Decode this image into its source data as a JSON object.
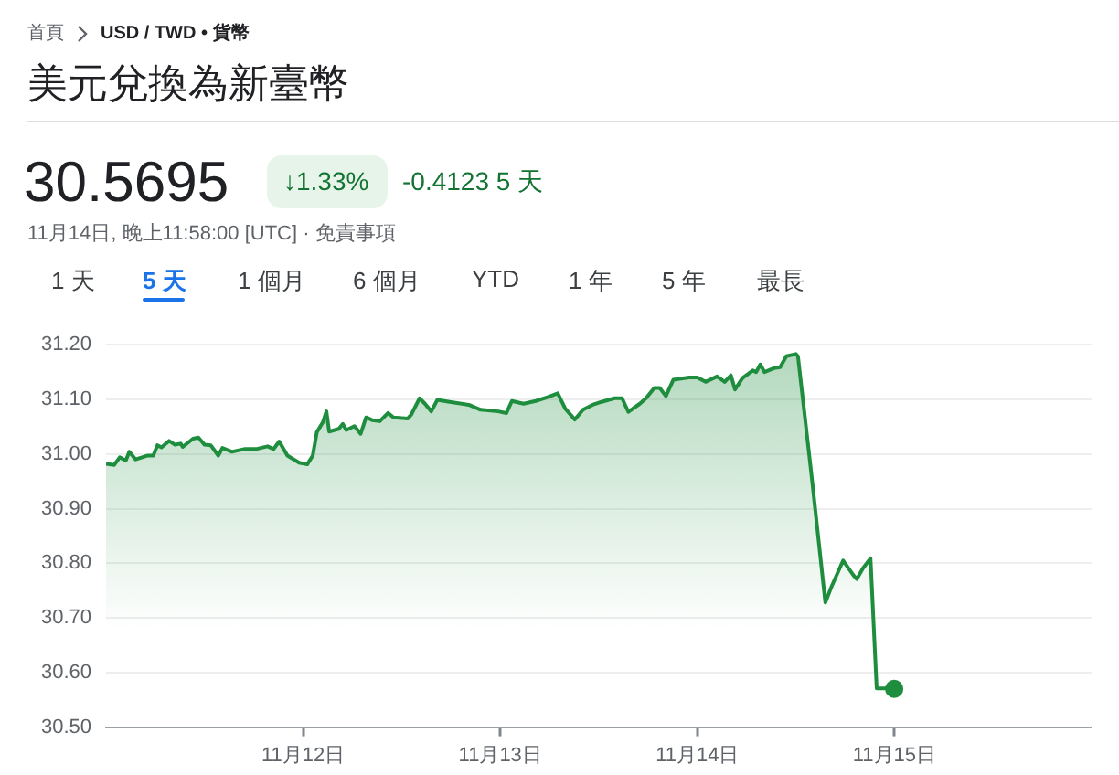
{
  "chart_data": {
    "type": "area",
    "title": "美元兌換為新臺幣",
    "annotations": [
      "首頁",
      "USD / TWD • 貨幣",
      "30.5695",
      "↓1.33%",
      "-0.4123 5 天",
      "11月14日, 晚上11:58:00 [UTC] · 免責事項",
      "1 天",
      "5 天",
      "1 個月",
      "6 個月",
      "YTD",
      "1 年",
      "5 年",
      "最長"
    ],
    "x": [
      "--11-11T00:00",
      "--11-11T01:00",
      "--11-11T01:40",
      "--11-11T02:24",
      "--11-11T02:50",
      "--11-11T03:36",
      "--11-11T05:00",
      "--11-11T05:45",
      "--11-11T06:15",
      "--11-11T06:45",
      "--11-11T07:40",
      "--11-11T08:24",
      "--11-11T09:05",
      "--11-11T09:20",
      "--11-11T10:35",
      "--11-11T11:15",
      "--11-11T12:00",
      "--11-11T12:45",
      "--11-11T13:40",
      "--11-11T14:10",
      "--11-11T15:20",
      "--11-11T16:50",
      "--11-11T18:15",
      "--11-11T19:40",
      "--11-11T20:24",
      "--11-11T21:05",
      "--11-11T22:05",
      "--11-11T23:30",
      "--11-12T00:30",
      "--11-12T01:10",
      "--11-12T01:40",
      "--11-12T02:24",
      "--11-12T02:50",
      "--11-12T03:10",
      "--11-12T04:20",
      "--11-12T04:50",
      "--11-12T05:15",
      "--11-12T06:15",
      "--11-12T07:00",
      "--11-12T07:40",
      "--11-12T08:24",
      "--11-12T09:20",
      "--11-12T10:20",
      "--11-12T11:00",
      "--11-12T12:45",
      "--11-12T13:10",
      "--11-12T14:10",
      "--11-12T14:50",
      "--11-12T15:36",
      "--11-12T16:20",
      "--11-12T18:00",
      "--11-12T20:10",
      "--11-12T21:36",
      "--11-12T23:45",
      "--11-13T00:45",
      "--11-13T01:25",
      "--11-13T02:50",
      "--11-13T04:20",
      "--11-13T05:45",
      "--11-13T07:00",
      "--11-13T07:55",
      "--11-13T09:05",
      "--11-13T10:05",
      "--11-13T11:15",
      "--11-13T12:15",
      "--11-13T13:55",
      "--11-13T14:50",
      "--11-13T15:36",
      "--11-13T17:00",
      "--11-13T17:45",
      "--11-13T18:45",
      "--11-13T19:25",
      "--11-13T20:10",
      "--11-13T21:05",
      "--11-13T23:00",
      "--11-14T00:00",
      "--11-14T01:00",
      "--11-14T02:24",
      "--11-14T03:20",
      "--11-14T04:05",
      "--11-14T04:35",
      "--11-14T05:30",
      "--11-14T06:45",
      "--11-14T07:10",
      "--11-14T07:40",
      "--11-14T08:10",
      "--11-14T09:20",
      "--11-14T10:05",
      "--11-14T10:50",
      "--11-14T12:00",
      "--11-14T12:15",
      "--11-14T13:55",
      "--11-14T15:35",
      "--11-14T16:20",
      "--11-14T17:45",
      "--11-14T19:00",
      "--11-14T19:25",
      "--11-14T20:10",
      "--11-14T21:05",
      "--11-14T21:50",
      "--11-14T23:00",
      "--11-14T23:58"
    ],
    "series": [
      {
        "color": "#1e8e3e",
        "values": [
          30.982,
          30.98,
          30.994,
          30.988,
          31.004,
          30.99,
          30.997,
          30.997,
          31.016,
          31.012,
          31.024,
          31.017,
          31.019,
          31.013,
          31.028,
          31.03,
          31.017,
          31.016,
          30.997,
          31.011,
          31.004,
          31.009,
          31.009,
          31.014,
          31.009,
          31.023,
          30.997,
          30.984,
          30.981,
          30.997,
          31.04,
          31.058,
          31.078,
          31.041,
          31.046,
          31.055,
          31.044,
          31.051,
          31.037,
          31.067,
          31.062,
          31.06,
          31.075,
          31.067,
          31.065,
          31.072,
          31.102,
          31.092,
          31.078,
          31.099,
          31.095,
          31.09,
          31.081,
          31.078,
          31.075,
          31.097,
          31.092,
          31.097,
          31.104,
          31.111,
          31.083,
          31.063,
          31.081,
          31.09,
          31.095,
          31.102,
          31.102,
          31.077,
          31.092,
          31.102,
          31.121,
          31.121,
          31.106,
          31.136,
          31.14,
          31.14,
          31.132,
          31.142,
          31.132,
          31.144,
          31.118,
          31.139,
          31.153,
          31.15,
          31.164,
          31.15,
          31.157,
          31.159,
          31.179,
          31.183,
          31.179,
          30.959,
          30.728,
          30.757,
          30.805,
          30.778,
          30.771,
          30.791,
          30.809,
          30.571,
          30.571,
          30.57
        ]
      }
    ],
    "xlim": [
      "--11-11",
      "--11-16"
    ],
    "xticks": [
      {
        "value": "--11-12",
        "label": "11月12日"
      },
      {
        "value": "--11-13",
        "label": "11月13日"
      },
      {
        "value": "--11-14",
        "label": "11月14日"
      },
      {
        "value": "--11-15",
        "label": "11月15日"
      }
    ],
    "ylim": [
      30.5,
      31.2
    ],
    "yticks": [
      {
        "value": 30.5,
        "label": "30.50"
      },
      {
        "value": 30.6,
        "label": "30.60"
      },
      {
        "value": 30.7,
        "label": "30.70"
      },
      {
        "value": 30.8,
        "label": "30.80"
      },
      {
        "value": 30.9,
        "label": "30.90"
      },
      {
        "value": 31.0,
        "label": "31.00"
      },
      {
        "value": 31.1,
        "label": "31.10"
      },
      {
        "value": 31.2,
        "label": "31.20"
      }
    ],
    "grid": "y",
    "legend": false
  }
}
